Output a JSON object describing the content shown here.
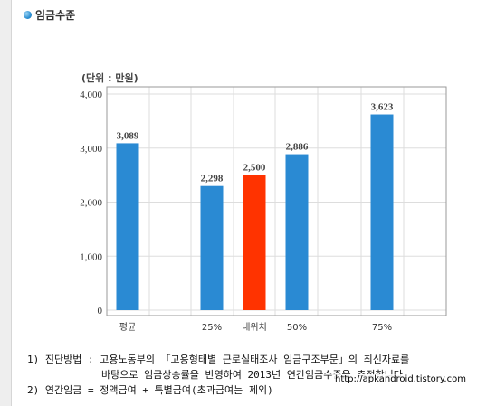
{
  "section": {
    "title": "임금수준"
  },
  "chart_data": {
    "type": "bar",
    "unit_label": "(단위 : 만원)",
    "categories": [
      "평균",
      "25%",
      "내위치",
      "50%",
      "75%"
    ],
    "values": [
      3089,
      2298,
      2500,
      2886,
      3623
    ],
    "value_labels": [
      "3,089",
      "2,298",
      "2,500",
      "2,886",
      "3,623"
    ],
    "y_ticks": [
      0,
      1000,
      2000,
      3000,
      4000
    ],
    "y_tick_labels": [
      "0",
      "1,000",
      "2,000",
      "3,000",
      "4,000"
    ],
    "ylim": [
      0,
      4000
    ],
    "grid": true,
    "colors": {
      "default": "#2a8ad3",
      "highlight": "#ff3300",
      "highlight_category": "내위치"
    }
  },
  "notes": [
    "1) 진단방법 : 고용노동부의 「고용형태별 근로실태조사 임금구조부문」의 최신자료를",
    "바탕으로 임금상승률을 반영하여 2013년 연간임금수준을 추정합니다.",
    "2) 연간임금 = 정액급여 + 특별급여(초과급여는 제외)"
  ],
  "watermark": "http://apkandroid.tistory.com"
}
